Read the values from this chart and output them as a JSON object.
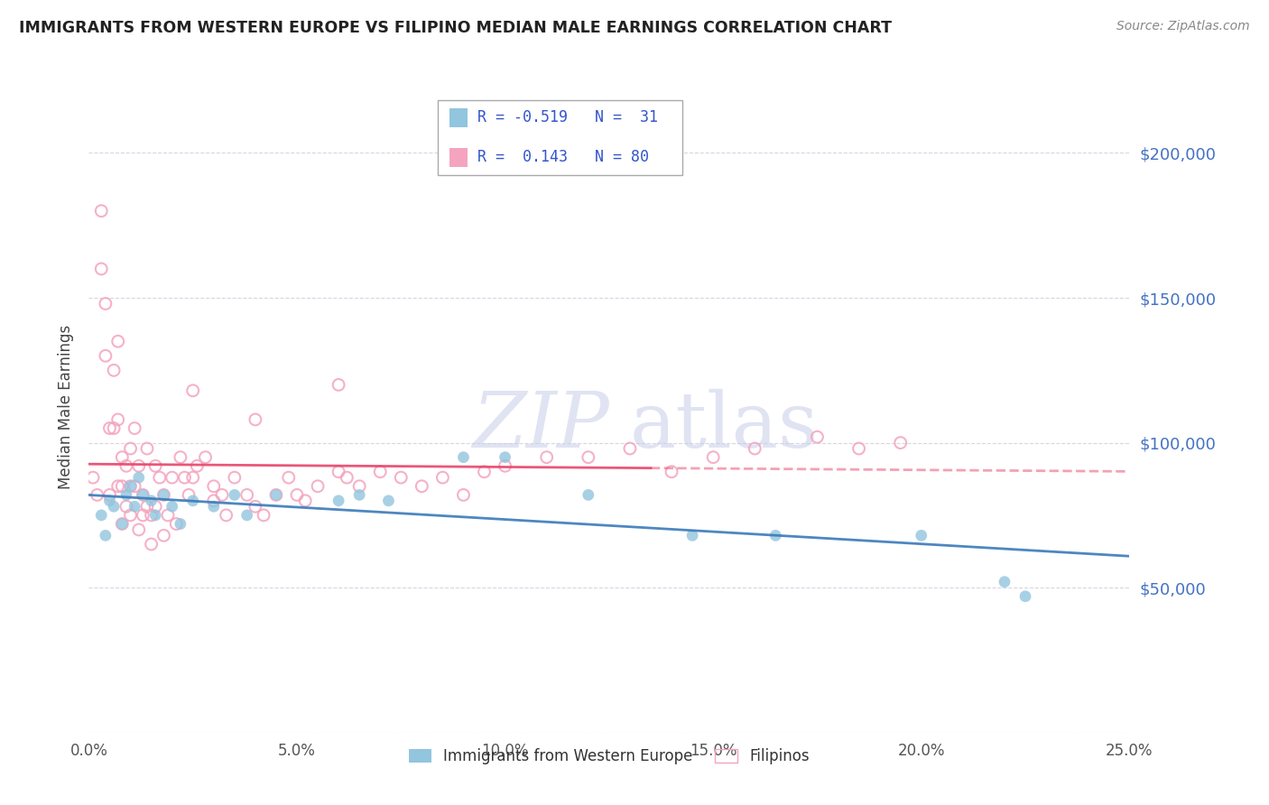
{
  "title": "IMMIGRANTS FROM WESTERN EUROPE VS FILIPINO MEDIAN MALE EARNINGS CORRELATION CHART",
  "source": "Source: ZipAtlas.com",
  "ylabel": "Median Male Earnings",
  "xlim": [
    0.0,
    0.25
  ],
  "ylim": [
    0,
    225000
  ],
  "ytick_vals": [
    0,
    50000,
    100000,
    150000,
    200000
  ],
  "ytick_labels": [
    "",
    "$50,000",
    "$100,000",
    "$150,000",
    "$200,000"
  ],
  "xtick_vals": [
    0.0,
    0.05,
    0.1,
    0.15,
    0.2,
    0.25
  ],
  "xtick_labels": [
    "0.0%",
    "5.0%",
    "10.0%",
    "15.0%",
    "20.0%",
    "25.0%"
  ],
  "blue_color": "#92c5de",
  "pink_color": "#f4a4bf",
  "blue_fill": "#92c5de",
  "pink_fill": "none",
  "blue_edge": "#92c5de",
  "pink_edge": "#f4a4bf",
  "blue_line_color": "#3a7aba",
  "pink_line_color": "#e8456a",
  "pink_dash_color": "#e8456a",
  "legend_label1": "Immigrants from Western Europe",
  "legend_label2": "Filipinos",
  "watermark_color": "#c8cce8",
  "blue_x": [
    0.003,
    0.004,
    0.005,
    0.006,
    0.008,
    0.009,
    0.01,
    0.011,
    0.012,
    0.013,
    0.015,
    0.016,
    0.018,
    0.02,
    0.022,
    0.025,
    0.03,
    0.035,
    0.038,
    0.045,
    0.06,
    0.065,
    0.072,
    0.09,
    0.1,
    0.12,
    0.145,
    0.165,
    0.2,
    0.22,
    0.225
  ],
  "blue_y": [
    75000,
    68000,
    80000,
    78000,
    72000,
    82000,
    85000,
    78000,
    88000,
    82000,
    80000,
    75000,
    82000,
    78000,
    72000,
    80000,
    78000,
    82000,
    75000,
    82000,
    80000,
    82000,
    80000,
    95000,
    95000,
    82000,
    68000,
    68000,
    68000,
    52000,
    47000
  ],
  "pink_x": [
    0.001,
    0.002,
    0.003,
    0.003,
    0.004,
    0.004,
    0.005,
    0.005,
    0.006,
    0.006,
    0.007,
    0.007,
    0.007,
    0.008,
    0.008,
    0.008,
    0.009,
    0.009,
    0.01,
    0.01,
    0.01,
    0.011,
    0.011,
    0.012,
    0.012,
    0.013,
    0.013,
    0.014,
    0.014,
    0.015,
    0.015,
    0.016,
    0.016,
    0.017,
    0.018,
    0.018,
    0.019,
    0.02,
    0.021,
    0.022,
    0.023,
    0.024,
    0.025,
    0.026,
    0.028,
    0.03,
    0.03,
    0.032,
    0.033,
    0.035,
    0.038,
    0.04,
    0.042,
    0.045,
    0.048,
    0.05,
    0.052,
    0.055,
    0.06,
    0.062,
    0.065,
    0.07,
    0.075,
    0.08,
    0.085,
    0.09,
    0.095,
    0.1,
    0.11,
    0.12,
    0.13,
    0.14,
    0.15,
    0.16,
    0.175,
    0.185,
    0.195,
    0.025,
    0.04,
    0.06
  ],
  "pink_y": [
    88000,
    82000,
    180000,
    160000,
    148000,
    130000,
    105000,
    82000,
    125000,
    105000,
    135000,
    108000,
    85000,
    95000,
    85000,
    72000,
    92000,
    78000,
    98000,
    85000,
    75000,
    105000,
    85000,
    92000,
    70000,
    82000,
    75000,
    98000,
    78000,
    75000,
    65000,
    92000,
    78000,
    88000,
    82000,
    68000,
    75000,
    88000,
    72000,
    95000,
    88000,
    82000,
    88000,
    92000,
    95000,
    80000,
    85000,
    82000,
    75000,
    88000,
    82000,
    78000,
    75000,
    82000,
    88000,
    82000,
    80000,
    85000,
    90000,
    88000,
    85000,
    90000,
    88000,
    85000,
    88000,
    82000,
    90000,
    92000,
    95000,
    95000,
    98000,
    90000,
    95000,
    98000,
    102000,
    98000,
    100000,
    118000,
    108000,
    120000
  ]
}
